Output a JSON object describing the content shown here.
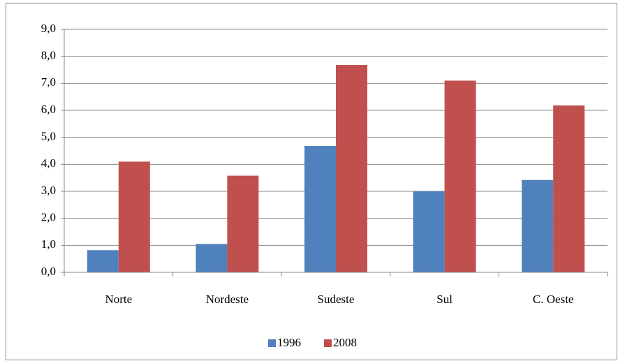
{
  "chart_data": {
    "type": "bar",
    "categories": [
      "Norte",
      "Nordeste",
      "Sudeste",
      "Sul",
      "C. Oeste"
    ],
    "series": [
      {
        "name": "1996",
        "color": "#4f81bd",
        "values": [
          0.82,
          1.05,
          4.68,
          3.0,
          3.42
        ]
      },
      {
        "name": "2008",
        "color": "#c0504d",
        "values": [
          4.1,
          3.58,
          7.68,
          7.1,
          6.18
        ]
      }
    ],
    "ylim": [
      0,
      9
    ],
    "yticks": [
      {
        "value": 0,
        "label": "0,0"
      },
      {
        "value": 1,
        "label": "1,0"
      },
      {
        "value": 2,
        "label": "2,0"
      },
      {
        "value": 3,
        "label": "3,0"
      },
      {
        "value": 4,
        "label": "4,0"
      },
      {
        "value": 5,
        "label": "5,0"
      },
      {
        "value": 6,
        "label": "6,0"
      },
      {
        "value": 7,
        "label": "7,0"
      },
      {
        "value": 8,
        "label": "8,0"
      },
      {
        "value": 9,
        "label": "9,0"
      }
    ],
    "grid": true,
    "legend": "bottom"
  }
}
